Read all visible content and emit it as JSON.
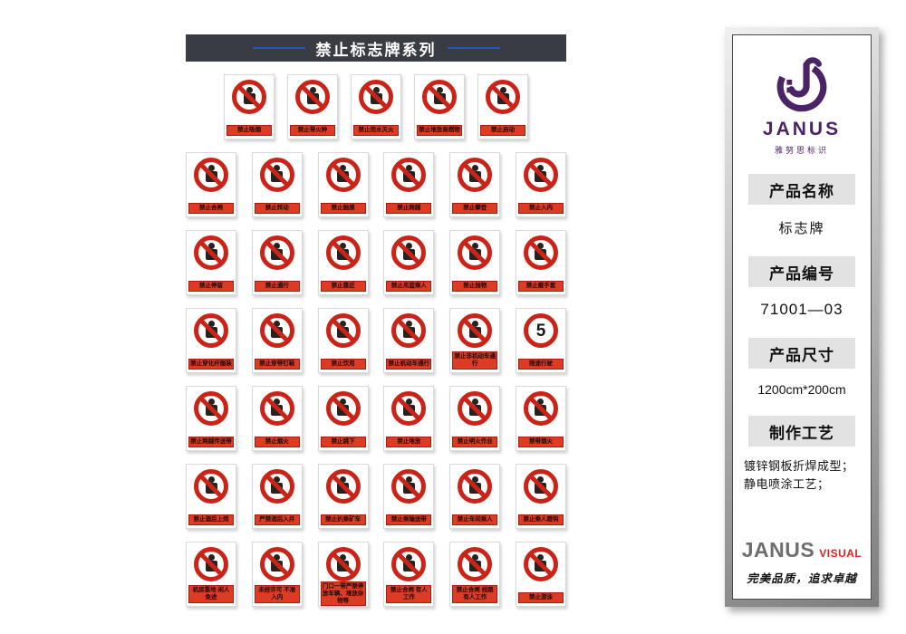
{
  "colors": {
    "header_bar_bg": "#393c42",
    "title_rule_blue": "#2456c8",
    "prohibition_red": "#cb2318",
    "label_red": "#dd3b23",
    "logo_purple": "#4b2468",
    "visual_red": "#e01f1f"
  },
  "header": {
    "title": "禁止标志牌系列"
  },
  "grid": {
    "rows": [
      {
        "signs": [
          {
            "label": "禁止吸烟"
          },
          {
            "label": "禁止带火种"
          },
          {
            "label": "禁止用水灭火"
          },
          {
            "label": "禁止堆放易燃物"
          },
          {
            "label": "禁止启动"
          }
        ]
      },
      {
        "signs": [
          {
            "label": "禁止合闸"
          },
          {
            "label": "禁止转动"
          },
          {
            "label": "禁止触摸"
          },
          {
            "label": "禁止跨越"
          },
          {
            "label": "禁止攀登"
          },
          {
            "label": "禁止入内"
          }
        ]
      },
      {
        "signs": [
          {
            "label": "禁止停留"
          },
          {
            "label": "禁止通行"
          },
          {
            "label": "禁止靠近"
          },
          {
            "label": "禁止吊篮乘人"
          },
          {
            "label": "禁止抛物"
          },
          {
            "label": "禁止戴手套"
          }
        ]
      },
      {
        "signs": [
          {
            "label": "禁止穿化纤服装"
          },
          {
            "label": "禁止穿带钉鞋"
          },
          {
            "label": "禁止饮用"
          },
          {
            "label": "禁止机动车通行"
          },
          {
            "label": "禁止非机动车通行"
          },
          {
            "label": "限速行驶",
            "glyph": "5"
          }
        ]
      },
      {
        "signs": [
          {
            "label": "禁止跨越传送带"
          },
          {
            "label": "禁止烟火"
          },
          {
            "label": "禁止跳下"
          },
          {
            "label": "禁止堆放"
          },
          {
            "label": "禁止明火作业"
          },
          {
            "label": "禁带烟火"
          }
        ]
      },
      {
        "signs": [
          {
            "label": "禁止酒后上岗"
          },
          {
            "label": "严禁酒后入井"
          },
          {
            "label": "禁止扒乘矿车"
          },
          {
            "label": "禁止乘输送带"
          },
          {
            "label": "禁止车间乘人"
          },
          {
            "label": "禁止乘人蹬钩"
          }
        ]
      },
      {
        "signs": [
          {
            "label": "机房重地 闲人免进"
          },
          {
            "label": "未经许可 不准入内"
          },
          {
            "label": "门口一带严禁停放车辆、堆放杂物等"
          },
          {
            "label": "禁止合闸 有人工作"
          },
          {
            "label": "禁止合闸 线路有人工作"
          },
          {
            "label": "禁止游泳"
          }
        ]
      }
    ]
  },
  "sidebar": {
    "logo": {
      "brand": "JANUS",
      "sub": "雅努思标识"
    },
    "sections": [
      {
        "header": "产品名称",
        "value": "标志牌"
      },
      {
        "header": "产品编号",
        "value": "71001—03"
      },
      {
        "header": "产品尺寸",
        "value": "1200cm*200cm"
      },
      {
        "header": "制作工艺",
        "value": "镀锌钢板折焊成型；静电喷涂工艺；"
      }
    ],
    "footer": {
      "brand": "JANUS",
      "brand_suffix": "VISUAL",
      "tagline": "完美品质，追求卓越"
    }
  }
}
